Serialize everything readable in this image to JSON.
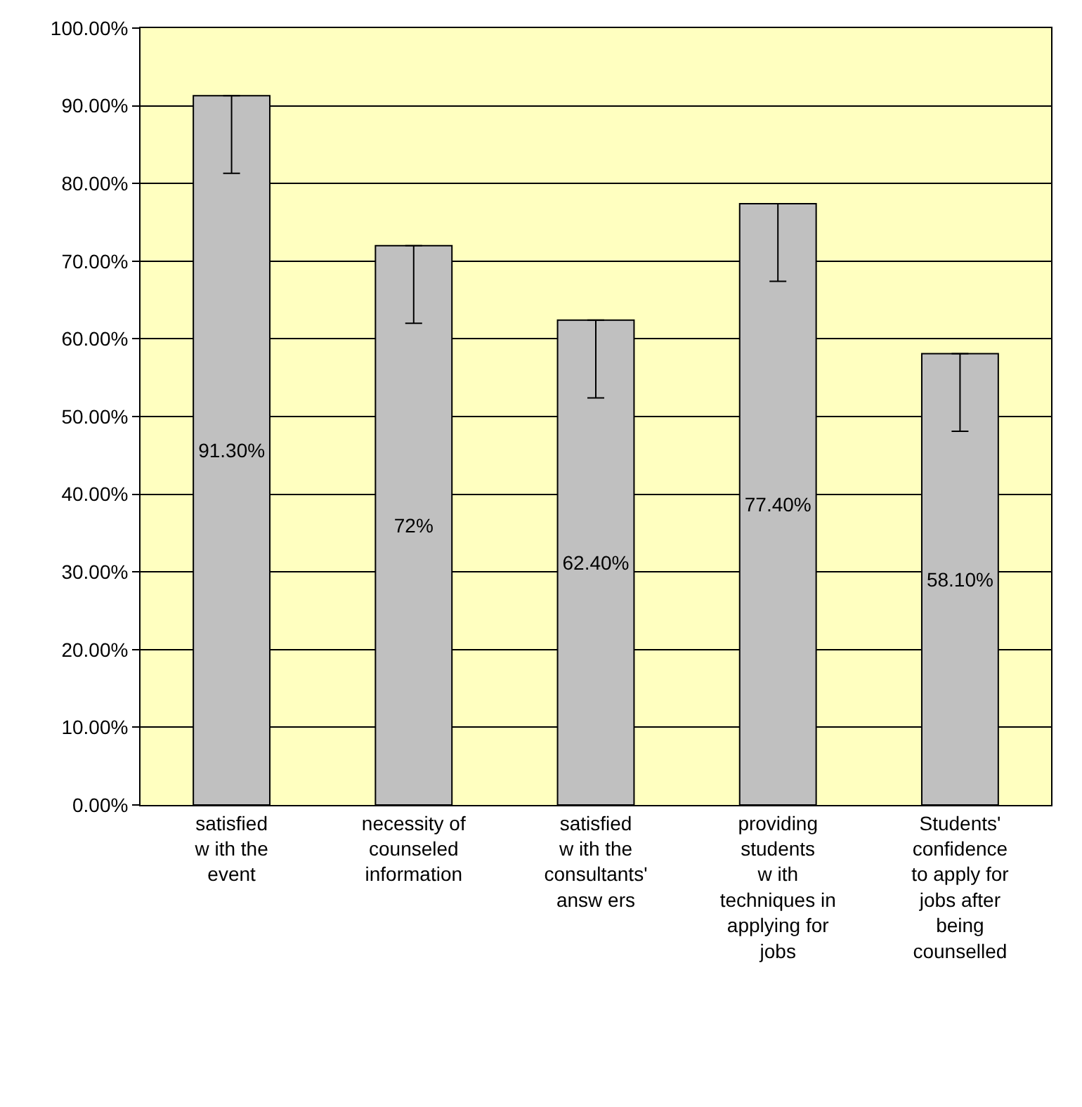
{
  "chart_data": {
    "type": "bar",
    "categories": [
      "satisfied\nw ith the\nevent",
      "necessity of\ncounseled\ninformation",
      "satisfied\nw ith the\nconsultants'\nansw ers",
      "providing\nstudents\nw ith\ntechniques in\napplying for\njobs",
      "Students'\nconfidence\nto apply for\njobs after\nbeing\ncounselled"
    ],
    "values": [
      91.3,
      72,
      62.4,
      77.4,
      58.1
    ],
    "value_labels": [
      "91.30%",
      "72%",
      "62.40%",
      "77.40%",
      "58.10%"
    ],
    "errors": [
      [
        81.3,
        91.3
      ],
      [
        62,
        72
      ],
      [
        52.4,
        62.4
      ],
      [
        67.4,
        77.4
      ],
      [
        48.1,
        58.1
      ]
    ],
    "color": "#c0c0c0",
    "ylim": [
      0,
      100
    ],
    "yticks": [
      {
        "value": 0,
        "label": "0.00%"
      },
      {
        "value": 10,
        "label": "10.00%"
      },
      {
        "value": 20,
        "label": "20.00%"
      },
      {
        "value": 30,
        "label": "30.00%"
      },
      {
        "value": 40,
        "label": "40.00%"
      },
      {
        "value": 50,
        "label": "50.00%"
      },
      {
        "value": 60,
        "label": "60.00%"
      },
      {
        "value": 70,
        "label": "70.00%"
      },
      {
        "value": 80,
        "label": "80.00%"
      },
      {
        "value": 90,
        "label": "90.00%"
      },
      {
        "value": 100,
        "label": "100.00%"
      }
    ],
    "grid": "y",
    "legend": false
  }
}
